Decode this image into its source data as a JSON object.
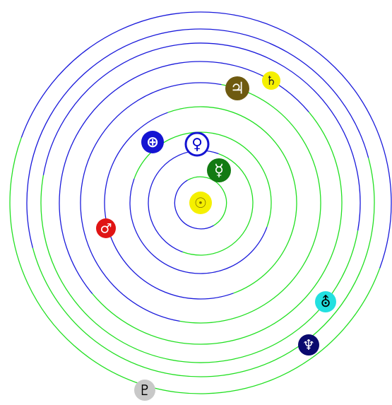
{
  "colors": {
    "orbit_a": "#1a1adb",
    "orbit_b": "#22e022",
    "background": "#ffffff"
  },
  "sun": {
    "name": "Sun",
    "symbol": "☉",
    "icon": "sun-icon",
    "color": "#f5f000",
    "text_color": "#7a6a00"
  },
  "planets": [
    {
      "name": "Mercury",
      "symbol": "☿",
      "icon": "mercury-icon",
      "color": "#127a12",
      "text_color": "#ffffff",
      "orbit": 1
    },
    {
      "name": "Venus",
      "symbol": "♀",
      "icon": "venus-icon",
      "color": "#ffffff",
      "text_color": "#0000cc",
      "orbit": 2
    },
    {
      "name": "Earth",
      "symbol": "⊕",
      "icon": "earth-icon",
      "color": "#1414d2",
      "text_color": "#ffffff",
      "orbit": 3
    },
    {
      "name": "Mars",
      "symbol": "♂",
      "icon": "mars-icon",
      "color": "#e01414",
      "text_color": "#ffffff",
      "orbit": 4
    },
    {
      "name": "Jupiter",
      "symbol": "♃",
      "icon": "jupiter-icon",
      "color": "#6e5a10",
      "text_color": "#ffffff",
      "orbit": 5
    },
    {
      "name": "Saturn",
      "symbol": "♄",
      "icon": "saturn-icon",
      "color": "#f5f000",
      "text_color": "#222222",
      "orbit": 6
    },
    {
      "name": "Uranus",
      "symbol": "⛢",
      "icon": "uranus-icon",
      "color": "#22e0e0",
      "text_color": "#000000",
      "orbit": 7
    },
    {
      "name": "Neptune",
      "symbol": "♆",
      "icon": "neptune-icon",
      "color": "#0a0a6e",
      "text_color": "#ffffff",
      "orbit": 8
    },
    {
      "name": "Pluto",
      "symbol": "♇",
      "icon": "pluto-icon",
      "color": "#c8c8c8",
      "text_color": "#000000",
      "orbit": 9
    }
  ]
}
